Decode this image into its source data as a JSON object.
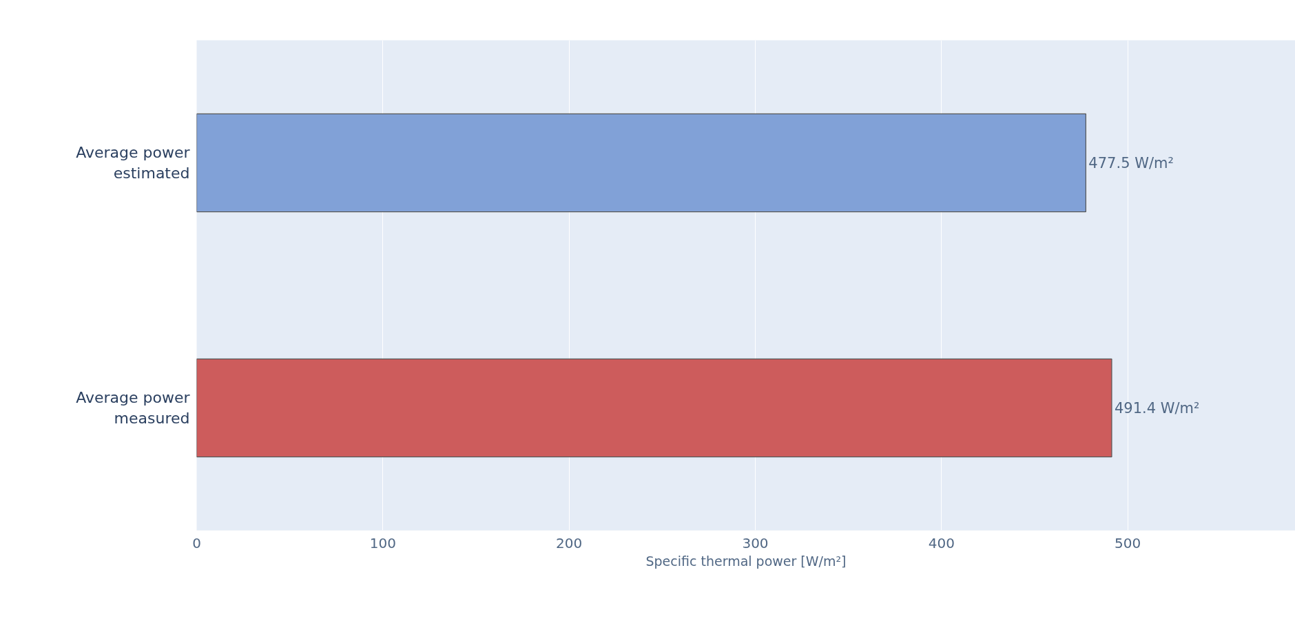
{
  "chart_data": {
    "type": "bar",
    "orientation": "horizontal",
    "categories": [
      "Average power\nestimated",
      "Average power\nmeasured"
    ],
    "values": [
      477.5,
      491.4
    ],
    "colors": [
      "#81a1d7",
      "#cd5c5c"
    ],
    "value_labels": [
      "477.5 W/m²",
      "491.4 W/m²"
    ],
    "xlabel": "Specific thermal power [W/m²]",
    "xlim": [
      0,
      590
    ],
    "xticks": [
      0,
      100,
      200,
      300,
      400,
      500
    ],
    "grid": "x"
  }
}
